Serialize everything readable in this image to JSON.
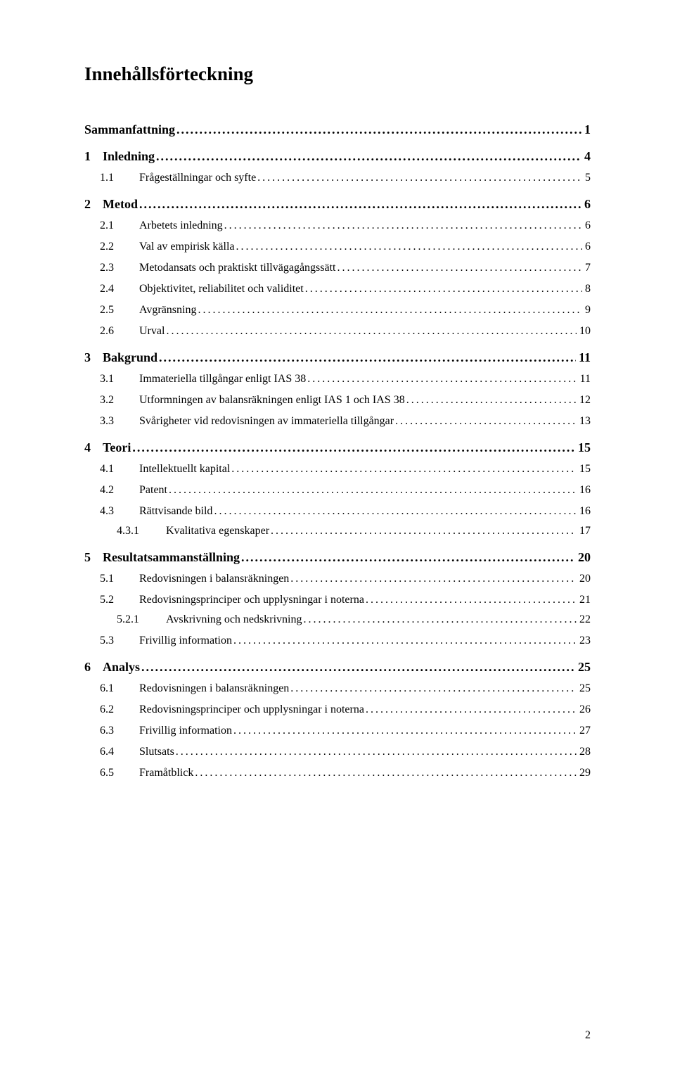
{
  "title": "Innehållsförteckning",
  "page_number": "2",
  "entries": [
    {
      "level": 0,
      "num": "",
      "label": "Sammanfattning",
      "page": "1"
    },
    {
      "level": 0,
      "num": "1",
      "label": "Inledning",
      "page": "4"
    },
    {
      "level": 1,
      "num": "1.1",
      "label": "Frågeställningar och syfte",
      "page": "5"
    },
    {
      "level": 0,
      "num": "2",
      "label": "Metod",
      "page": "6"
    },
    {
      "level": 1,
      "num": "2.1",
      "label": "Arbetets inledning",
      "page": "6"
    },
    {
      "level": 1,
      "num": "2.2",
      "label": "Val av empirisk källa",
      "page": "6"
    },
    {
      "level": 1,
      "num": "2.3",
      "label": "Metodansats och praktiskt tillvägagångssätt",
      "page": "7"
    },
    {
      "level": 1,
      "num": "2.4",
      "label": "Objektivitet, reliabilitet och validitet",
      "page": "8"
    },
    {
      "level": 1,
      "num": "2.5",
      "label": "Avgränsning",
      "page": "9"
    },
    {
      "level": 1,
      "num": "2.6",
      "label": "Urval",
      "page": "10"
    },
    {
      "level": 0,
      "num": "3",
      "label": "Bakgrund",
      "page": "11"
    },
    {
      "level": 1,
      "num": "3.1",
      "label": "Immateriella tillgångar enligt IAS 38",
      "page": "11"
    },
    {
      "level": 1,
      "num": "3.2",
      "label": "Utformningen av balansräkningen enligt IAS 1 och IAS 38",
      "page": "12"
    },
    {
      "level": 1,
      "num": "3.3",
      "label": "Svårigheter vid redovisningen av immateriella tillgångar",
      "page": "13"
    },
    {
      "level": 0,
      "num": "4",
      "label": "Teori",
      "page": "15"
    },
    {
      "level": 1,
      "num": "4.1",
      "label": "Intellektuellt kapital",
      "page": "15"
    },
    {
      "level": 1,
      "num": "4.2",
      "label": "Patent",
      "page": "16"
    },
    {
      "level": 1,
      "num": "4.3",
      "label": "Rättvisande bild",
      "page": "16"
    },
    {
      "level": 2,
      "num": "4.3.1",
      "label": "Kvalitativa egenskaper",
      "page": "17"
    },
    {
      "level": 0,
      "num": "5",
      "label": "Resultatsammanställning",
      "page": "20"
    },
    {
      "level": 1,
      "num": "5.1",
      "label": "Redovisningen i balansräkningen",
      "page": "20"
    },
    {
      "level": 1,
      "num": "5.2",
      "label": "Redovisningsprinciper och upplysningar i noterna",
      "page": "21"
    },
    {
      "level": 2,
      "num": "5.2.1",
      "label": "Avskrivning och nedskrivning",
      "page": "22"
    },
    {
      "level": 1,
      "num": "5.3",
      "label": "Frivillig information",
      "page": "23"
    },
    {
      "level": 0,
      "num": "6",
      "label": "Analys",
      "page": "25"
    },
    {
      "level": 1,
      "num": "6.1",
      "label": "Redovisningen i balansräkningen",
      "page": "25"
    },
    {
      "level": 1,
      "num": "6.2",
      "label": "Redovisningsprinciper och upplysningar i noterna",
      "page": "26"
    },
    {
      "level": 1,
      "num": "6.3",
      "label": "Frivillig information",
      "page": "27"
    },
    {
      "level": 1,
      "num": "6.4",
      "label": "Slutsats",
      "page": "28"
    },
    {
      "level": 1,
      "num": "6.5",
      "label": "Framåtblick",
      "page": "29"
    }
  ]
}
